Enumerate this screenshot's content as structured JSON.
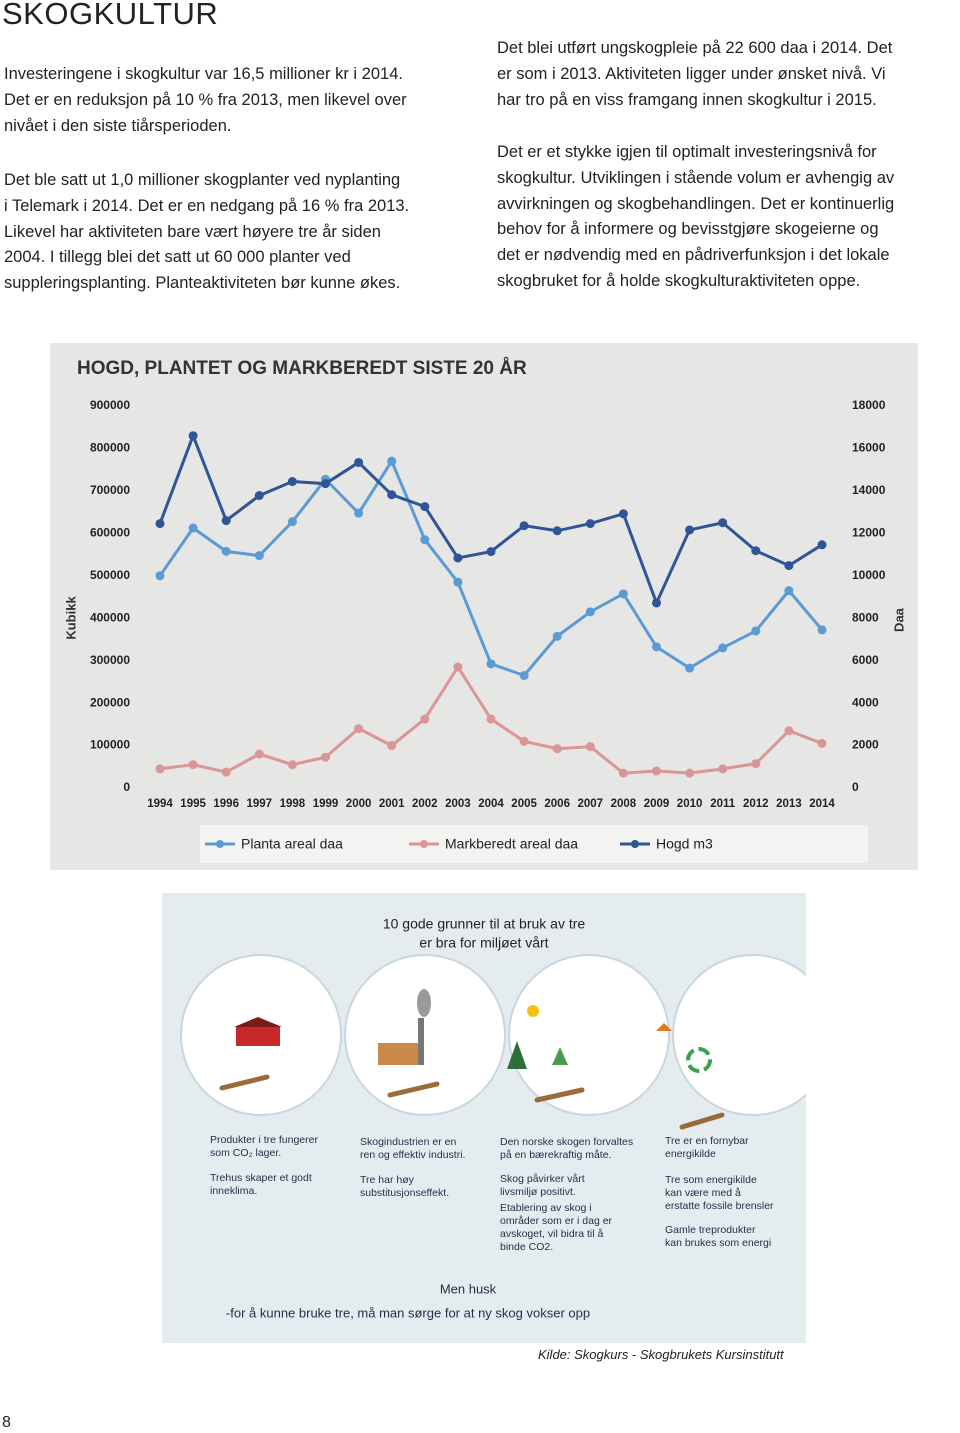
{
  "header": {
    "title": "SKOGKULTUR"
  },
  "left_text": [
    [
      "Investeringene i skogkultur var 16,5 millioner kr i 2014.",
      "Det er en reduksjon på 10 % fra 2013, men likevel over",
      "nivået i den siste tiårsperioden."
    ],
    [
      "Det ble satt ut 1,0 millioner skogplanter ved nyplanting",
      "i Telemark i 2014. Det er en nedgang på 16 % fra 2013.",
      "Likevel har aktiviteten bare vært høyere tre år siden",
      "2004. I tillegg blei det satt ut 60 000 planter ved",
      "suppleringsplanting. Planteaktiviteten bør kunne økes."
    ]
  ],
  "right_text": [
    [
      "Det blei utført ungskogpleie på 22 600 daa i 2014. Det",
      "er som i 2013. Aktiviteten ligger  under ønsket nivå. Vi",
      "har tro på en viss framgang innen skogkultur i 2015."
    ],
    [
      "Det er et stykke igjen til optimalt investeringsnivå for",
      "skogkultur. Utviklingen i stående volum er avhengig av",
      "avvirkningen og skogbehandlingen. Det er kontinuerlig",
      "behov for å informere og bevisstgjøre skogeierne og",
      "det er nødvendig med en pådriverfunksjon i det lokale",
      "skogbruket for å holde skogkulturaktiviteten oppe."
    ]
  ],
  "chart_data": {
    "type": "line",
    "title": "HOGD, PLANTET OG MARKBEREDT SISTE 20 ÅR",
    "y_label": "Kubikk",
    "y2_label": "Daa",
    "categories": [
      "1994",
      "1995",
      "1996",
      "1997",
      "1998",
      "1999",
      "2000",
      "2001",
      "2002",
      "2003",
      "2004",
      "2005",
      "2006",
      "2007",
      "2008",
      "2009",
      "2010",
      "2011",
      "2012",
      "2013",
      "2014"
    ],
    "ylim": [
      0,
      900000
    ],
    "yticks": [
      0,
      100000,
      200000,
      300000,
      400000,
      500000,
      600000,
      700000,
      800000,
      900000
    ],
    "y2lim": [
      0,
      18000
    ],
    "y2ticks": [
      0,
      2000,
      4000,
      6000,
      8000,
      10000,
      12000,
      14000,
      16000,
      18000
    ],
    "grid": false,
    "series": [
      {
        "name": "Planta areal daa",
        "color": "#5b9bd5",
        "axis": "y2",
        "values": [
          10000,
          12250,
          11150,
          10950,
          12550,
          14550,
          12950,
          15400,
          11700,
          9700,
          5850,
          5300,
          7150,
          8300,
          9150,
          6650,
          5650,
          6600,
          7400,
          9300,
          7450
        ]
      },
      {
        "name": "Markberedt areal daa",
        "color": "#d99694",
        "axis": "y2",
        "values": [
          900,
          1100,
          750,
          1600,
          1100,
          1450,
          2800,
          2000,
          3250,
          5700,
          3250,
          2200,
          1850,
          1950,
          700,
          800,
          700,
          900,
          1150,
          2700,
          2100
        ]
      },
      {
        "name": "Hogd m3",
        "color": "#2f5597",
        "values": [
          623000,
          830000,
          630000,
          689000,
          722000,
          717000,
          767000,
          691000,
          663000,
          542000,
          557000,
          618000,
          606000,
          623000,
          646000,
          436000,
          608000,
          625000,
          559000,
          524000,
          573000
        ]
      }
    ]
  },
  "infographic": {
    "title": [
      "10 gode grunner til at bruk av tre",
      "er bra for miljøet vårt"
    ],
    "columns": [
      {
        "blocks": [
          [
            "Produkter i tre fungerer",
            "som CO₂ lager."
          ],
          [
            "Trehus skaper et godt",
            "inneklima."
          ]
        ]
      },
      {
        "blocks": [
          [
            "Skogindustrien er en",
            "ren og effektiv industri."
          ],
          [
            "Tre har høy",
            "substitusjonseffekt."
          ]
        ]
      },
      {
        "blocks": [
          [
            "Den norske skogen forvaltes",
            "på en bærekraftig måte."
          ],
          [
            "Skog påvirker vårt",
            "livsmiljø positivt."
          ],
          [
            "Etablering av skog i",
            "områder som er i dag er",
            "avskoget, vil bidra til å",
            "binde CO2."
          ]
        ]
      },
      {
        "blocks": [
          [
            "Tre er en fornybar",
            "energikilde"
          ],
          [
            "Tre som energikilde",
            "kan være med å",
            "erstatte fossile brensler"
          ],
          [
            "Gamle treprodukter",
            "kan brukes som energi"
          ]
        ]
      }
    ],
    "footer": [
      "Men husk",
      "-for å kunne bruke tre, må man sørge for at ny skog vokser opp"
    ]
  },
  "source": "Kilde: Skogkurs - Skogbrukets Kursinstitutt",
  "page_number": "8"
}
